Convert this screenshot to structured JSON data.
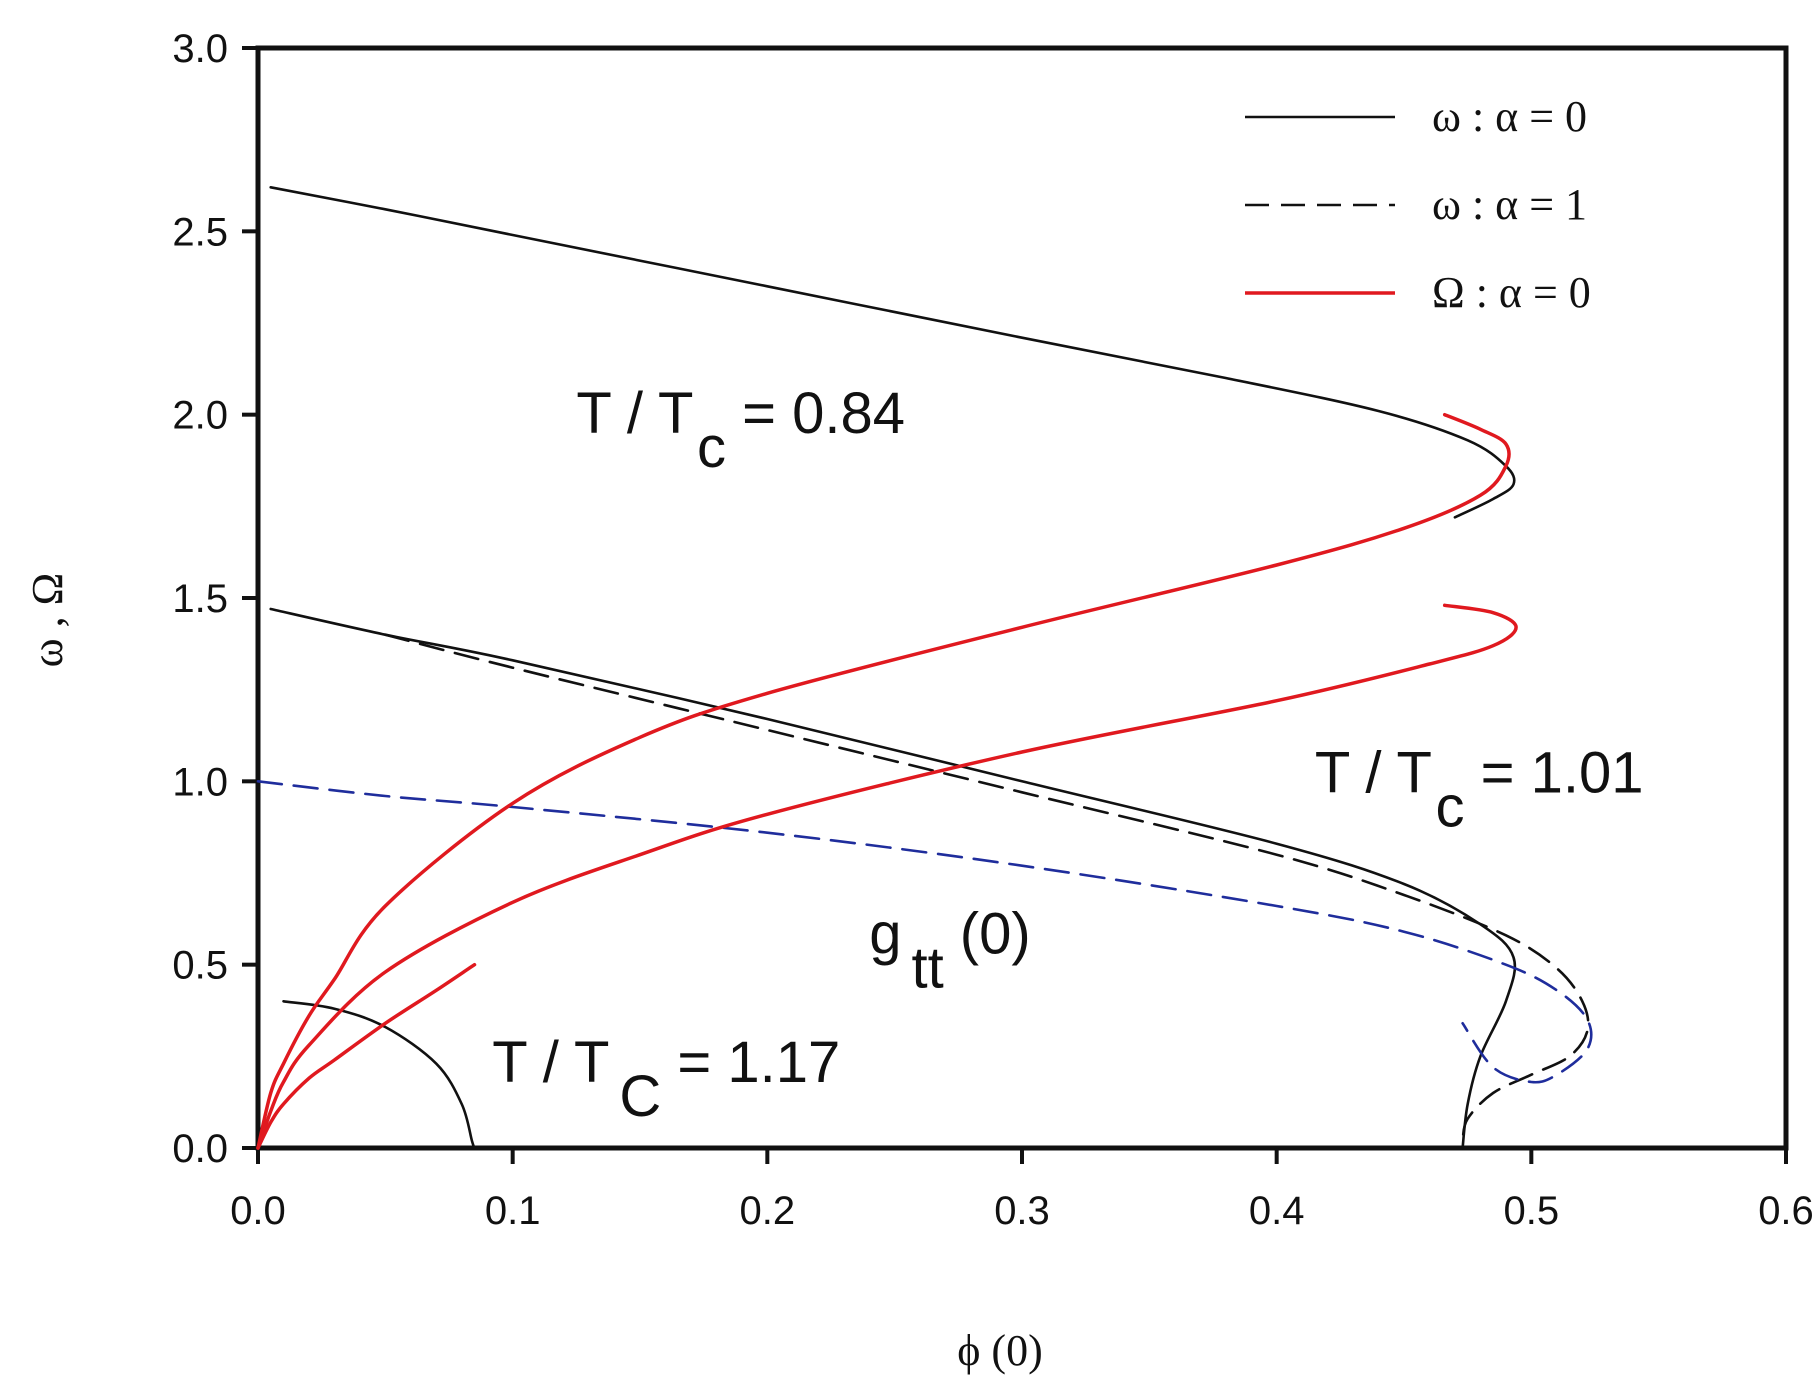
{
  "chart_data": {
    "type": "line",
    "xlabel": "ϕ (0)",
    "ylabel": "ω , Ω",
    "xlim": [
      0.0,
      0.6
    ],
    "ylim": [
      0.0,
      3.0
    ],
    "xticks": [
      "0.0",
      "0.1",
      "0.2",
      "0.3",
      "0.4",
      "0.5",
      "0.6"
    ],
    "yticks": [
      "0.0",
      "0.5",
      "1.0",
      "1.5",
      "2.0",
      "2.5",
      "3.0"
    ],
    "grid": false,
    "legend_position": "top-right",
    "legend": [
      {
        "label": "ω : α = 0",
        "color": "#111111",
        "style": "solid"
      },
      {
        "label": "ω : α = 1",
        "color": "#111111",
        "style": "dashed"
      },
      {
        "label": "Ω : α = 0",
        "color": "#e0191f",
        "style": "solid"
      }
    ],
    "annotations": [
      {
        "text": "T / T",
        "sub": "c",
        "tail": " = 0.84",
        "x": 0.125,
        "y": 1.95
      },
      {
        "text": "T / T",
        "sub": "c",
        "tail": " = 1.01",
        "x": 0.415,
        "y": 0.97
      },
      {
        "text": "T / T",
        "sub": "C",
        "tail": " = 1.17",
        "x": 0.092,
        "y": 0.18
      },
      {
        "text": "g",
        "sub": "tt",
        "tail": " (0)",
        "x": 0.24,
        "y": 0.53
      }
    ],
    "series": [
      {
        "name": "ω α=0 T/Tc=0.84",
        "color": "#111111",
        "style": "solid",
        "points": [
          [
            0.005,
            2.62
          ],
          [
            0.05,
            2.56
          ],
          [
            0.1,
            2.49
          ],
          [
            0.2,
            2.35
          ],
          [
            0.3,
            2.21
          ],
          [
            0.38,
            2.1
          ],
          [
            0.44,
            2.01
          ],
          [
            0.475,
            1.93
          ],
          [
            0.49,
            1.86
          ],
          [
            0.493,
            1.81
          ],
          [
            0.485,
            1.77
          ],
          [
            0.47,
            1.72
          ]
        ]
      },
      {
        "name": "ω α=0 T/Tc=1.01",
        "color": "#111111",
        "style": "solid",
        "points": [
          [
            0.005,
            1.47
          ],
          [
            0.05,
            1.4
          ],
          [
            0.1,
            1.33
          ],
          [
            0.2,
            1.17
          ],
          [
            0.3,
            1.0
          ],
          [
            0.4,
            0.83
          ],
          [
            0.45,
            0.72
          ],
          [
            0.48,
            0.61
          ],
          [
            0.493,
            0.52
          ],
          [
            0.49,
            0.4
          ],
          [
            0.48,
            0.25
          ],
          [
            0.475,
            0.12
          ],
          [
            0.473,
            0.0
          ]
        ]
      },
      {
        "name": "ω α=0 T/Tc=1.17",
        "color": "#111111",
        "style": "solid",
        "points": [
          [
            0.01,
            0.4
          ],
          [
            0.03,
            0.38
          ],
          [
            0.05,
            0.33
          ],
          [
            0.07,
            0.23
          ],
          [
            0.08,
            0.12
          ],
          [
            0.084,
            0.02
          ],
          [
            0.085,
            0.0
          ]
        ]
      },
      {
        "name": "ω α=1 T/Tc=1.01",
        "color": "#111111",
        "style": "dashed",
        "points": [
          [
            0.05,
            1.4
          ],
          [
            0.1,
            1.31
          ],
          [
            0.2,
            1.14
          ],
          [
            0.3,
            0.97
          ],
          [
            0.4,
            0.8
          ],
          [
            0.45,
            0.69
          ],
          [
            0.49,
            0.58
          ],
          [
            0.51,
            0.49
          ],
          [
            0.52,
            0.4
          ],
          [
            0.522,
            0.32
          ],
          [
            0.515,
            0.25
          ],
          [
            0.5,
            0.2
          ],
          [
            0.485,
            0.15
          ],
          [
            0.475,
            0.08
          ],
          [
            0.473,
            0.02
          ]
        ]
      },
      {
        "name": "gtt(0)",
        "color": "#1f2d9c",
        "style": "dashed",
        "points": [
          [
            0.0,
            1.0
          ],
          [
            0.05,
            0.96
          ],
          [
            0.1,
            0.93
          ],
          [
            0.2,
            0.86
          ],
          [
            0.3,
            0.77
          ],
          [
            0.4,
            0.66
          ],
          [
            0.45,
            0.59
          ],
          [
            0.49,
            0.5
          ],
          [
            0.51,
            0.43
          ],
          [
            0.522,
            0.35
          ],
          [
            0.522,
            0.27
          ],
          [
            0.51,
            0.2
          ],
          [
            0.5,
            0.18
          ],
          [
            0.485,
            0.22
          ],
          [
            0.473,
            0.34
          ]
        ]
      },
      {
        "name": "Ω α=0 T/Tc=0.84",
        "color": "#e0191f",
        "style": "solid",
        "points": [
          [
            0.0,
            0.0
          ],
          [
            0.005,
            0.15
          ],
          [
            0.01,
            0.23
          ],
          [
            0.02,
            0.36
          ],
          [
            0.03,
            0.46
          ],
          [
            0.05,
            0.66
          ],
          [
            0.1,
            0.94
          ],
          [
            0.15,
            1.12
          ],
          [
            0.2,
            1.24
          ],
          [
            0.3,
            1.42
          ],
          [
            0.4,
            1.59
          ],
          [
            0.45,
            1.69
          ],
          [
            0.48,
            1.78
          ],
          [
            0.49,
            1.86
          ],
          [
            0.49,
            1.92
          ],
          [
            0.48,
            1.96
          ],
          [
            0.466,
            2.0
          ]
        ]
      },
      {
        "name": "Ω α=0 T/Tc=1.01",
        "color": "#e0191f",
        "style": "solid",
        "points": [
          [
            0.0,
            0.0
          ],
          [
            0.005,
            0.1
          ],
          [
            0.01,
            0.18
          ],
          [
            0.02,
            0.28
          ],
          [
            0.05,
            0.48
          ],
          [
            0.1,
            0.67
          ],
          [
            0.15,
            0.8
          ],
          [
            0.2,
            0.91
          ],
          [
            0.3,
            1.08
          ],
          [
            0.4,
            1.22
          ],
          [
            0.46,
            1.32
          ],
          [
            0.485,
            1.37
          ],
          [
            0.494,
            1.42
          ],
          [
            0.485,
            1.46
          ],
          [
            0.466,
            1.48
          ]
        ]
      },
      {
        "name": "Ω α=0 T/Tc=1.17",
        "color": "#e0191f",
        "style": "solid",
        "points": [
          [
            0.0,
            0.0
          ],
          [
            0.005,
            0.07
          ],
          [
            0.01,
            0.12
          ],
          [
            0.02,
            0.19
          ],
          [
            0.03,
            0.24
          ],
          [
            0.05,
            0.34
          ],
          [
            0.07,
            0.43
          ],
          [
            0.085,
            0.5
          ]
        ]
      }
    ]
  }
}
